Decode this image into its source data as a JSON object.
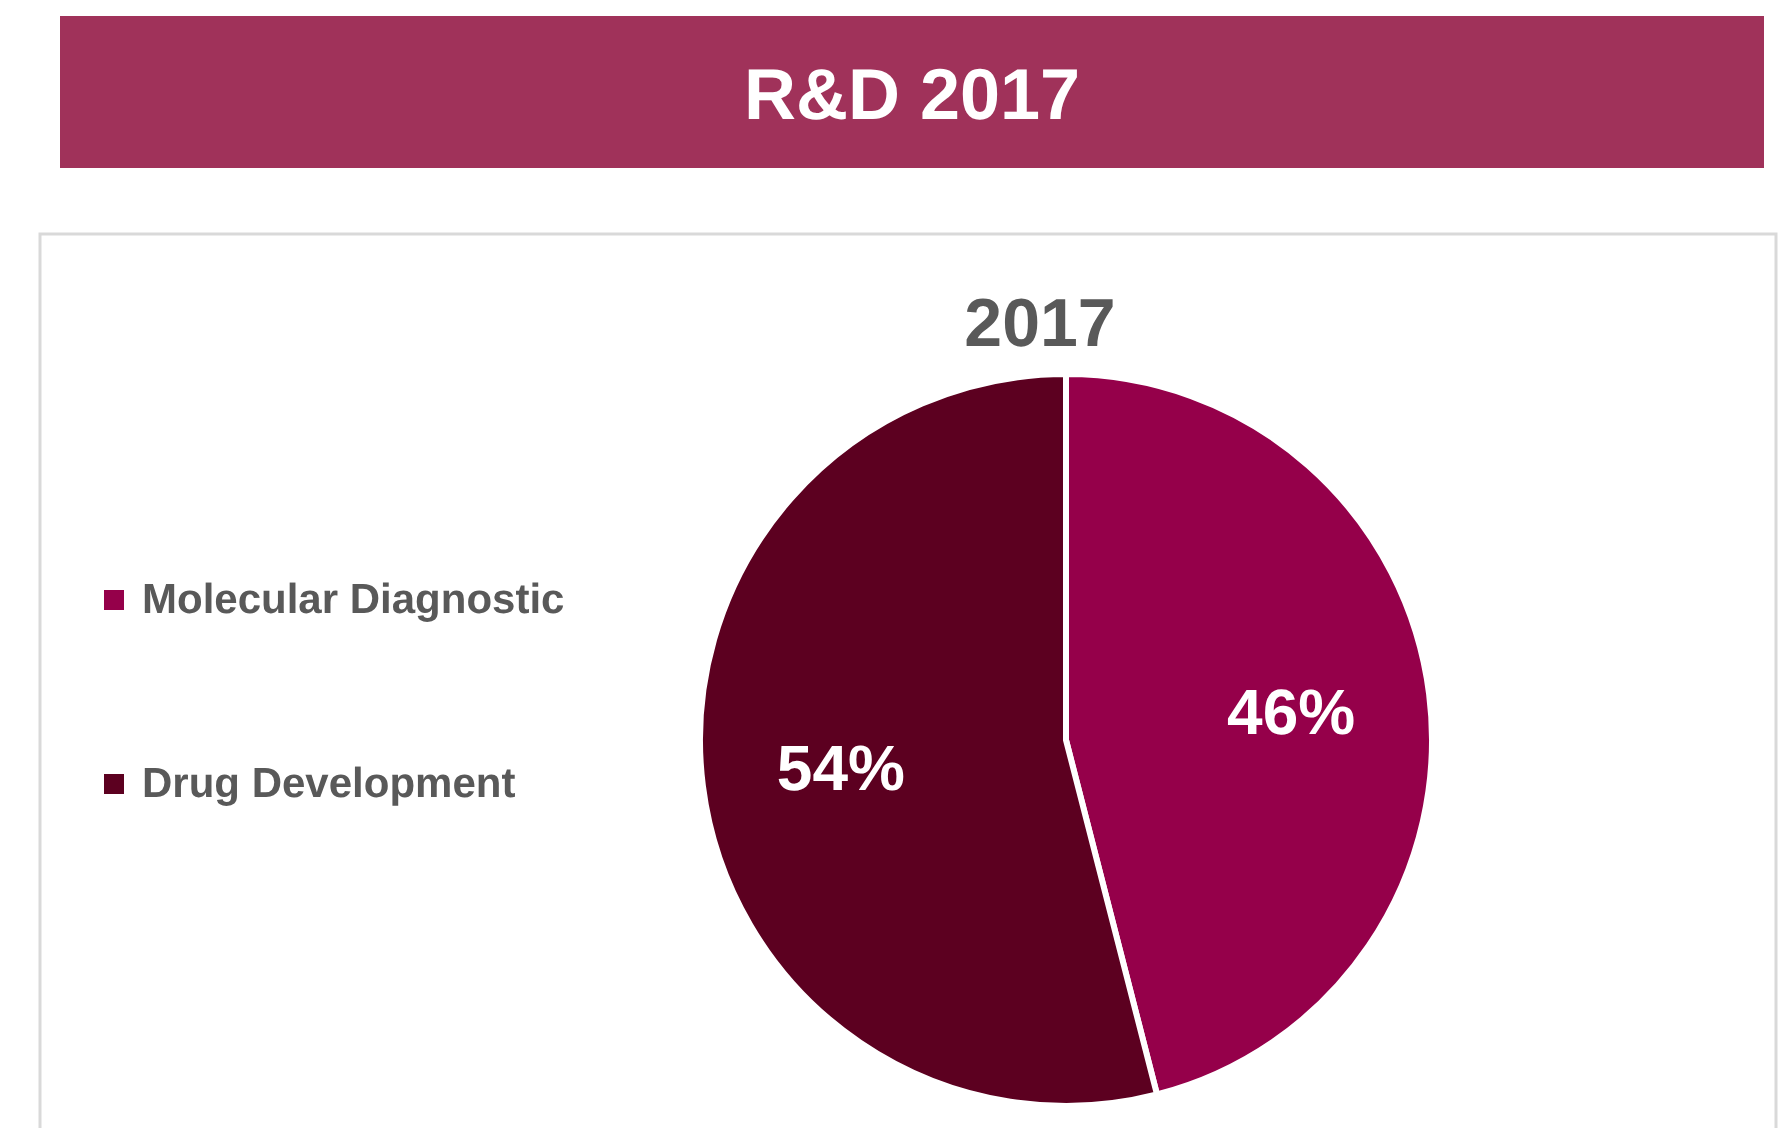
{
  "chart_data": {
    "type": "pie",
    "title": "R&D 2017",
    "subtitle": "2017",
    "categories": [
      "Molecular Diagnostic",
      "Drug Development"
    ],
    "values": [
      46,
      54
    ],
    "colors": [
      "#95004a",
      "#5c0020"
    ],
    "value_labels": [
      "46%",
      "54%"
    ],
    "legend": "left"
  }
}
